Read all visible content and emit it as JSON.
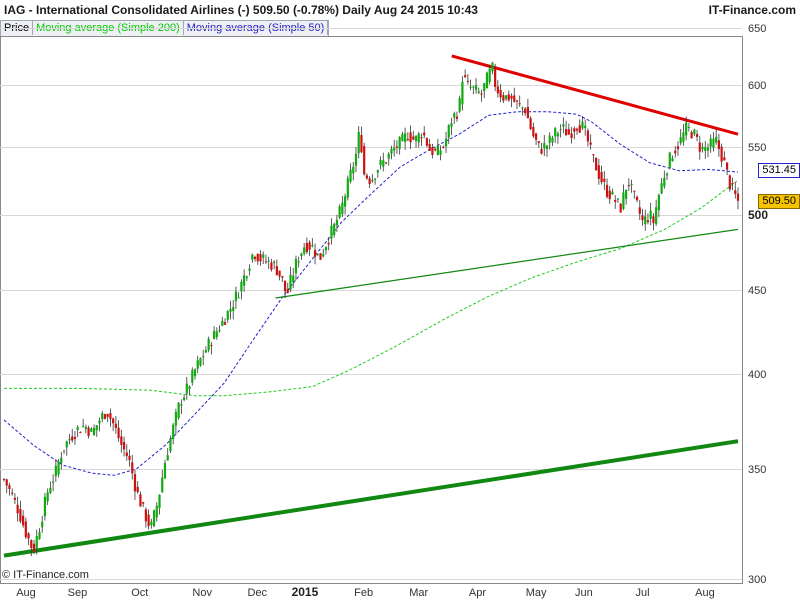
{
  "title": {
    "left": "IAG - International Consolidated Airlines  (-)    509.50 (-0.78%)    Daily  Aug 24 2015 10:43",
    "right": "IT-Finance.com"
  },
  "legend": {
    "items": [
      {
        "label": "Price",
        "color": "#000000"
      },
      {
        "label": "Moving average (Simple 200)",
        "color": "#00cc00"
      },
      {
        "label": "Moving average (Simple 50)",
        "color": "#2222cc"
      }
    ]
  },
  "credit": "© IT-Finance.com",
  "badges": [
    {
      "label": "531.45",
      "value": 531.45,
      "bg": "#ffffff",
      "border": "#2222cc"
    },
    {
      "label": "509.50",
      "value": 509.5,
      "bg": "#f5c400",
      "border": "#886600"
    }
  ],
  "chart_data": {
    "type": "candlestick",
    "scale": "log",
    "ylim": [
      300,
      650
    ],
    "y_ticks": [
      {
        "label": "650",
        "value": 650
      },
      {
        "label": "600",
        "value": 600
      },
      {
        "label": "550",
        "value": 550
      },
      {
        "label": "500",
        "value": 500,
        "bold": true
      },
      {
        "label": "450",
        "value": 450
      },
      {
        "label": "400",
        "value": 400
      },
      {
        "label": "350",
        "value": 350
      },
      {
        "label": "300",
        "value": 300
      }
    ],
    "x_ticks": [
      {
        "label": "Aug",
        "t": 0.03
      },
      {
        "label": "Sep",
        "t": 0.1
      },
      {
        "label": "Oct",
        "t": 0.185
      },
      {
        "label": "Nov",
        "t": 0.27
      },
      {
        "label": "Dec",
        "t": 0.345
      },
      {
        "label": "2015",
        "t": 0.41,
        "bold": true
      },
      {
        "label": "Feb",
        "t": 0.49
      },
      {
        "label": "Mar",
        "t": 0.565
      },
      {
        "label": "Apr",
        "t": 0.645
      },
      {
        "label": "May",
        "t": 0.725
      },
      {
        "label": "Jun",
        "t": 0.79
      },
      {
        "label": "Jul",
        "t": 0.87
      },
      {
        "label": "Aug",
        "t": 0.955
      }
    ],
    "price_path": [
      [
        0.0,
        345
      ],
      [
        0.01,
        338
      ],
      [
        0.02,
        330
      ],
      [
        0.03,
        320
      ],
      [
        0.04,
        312
      ],
      [
        0.05,
        325
      ],
      [
        0.06,
        340
      ],
      [
        0.07,
        348
      ],
      [
        0.08,
        360
      ],
      [
        0.09,
        366
      ],
      [
        0.1,
        370
      ],
      [
        0.11,
        372
      ],
      [
        0.12,
        368
      ],
      [
        0.13,
        375
      ],
      [
        0.14,
        380
      ],
      [
        0.15,
        372
      ],
      [
        0.16,
        362
      ],
      [
        0.17,
        355
      ],
      [
        0.18,
        340
      ],
      [
        0.19,
        330
      ],
      [
        0.2,
        322
      ],
      [
        0.21,
        335
      ],
      [
        0.22,
        355
      ],
      [
        0.23,
        370
      ],
      [
        0.24,
        385
      ],
      [
        0.25,
        392
      ],
      [
        0.26,
        402
      ],
      [
        0.27,
        410
      ],
      [
        0.28,
        418
      ],
      [
        0.29,
        425
      ],
      [
        0.3,
        432
      ],
      [
        0.31,
        440
      ],
      [
        0.32,
        450
      ],
      [
        0.33,
        462
      ],
      [
        0.34,
        475
      ],
      [
        0.35,
        470
      ],
      [
        0.36,
        468
      ],
      [
        0.37,
        465
      ],
      [
        0.38,
        455
      ],
      [
        0.385,
        446
      ],
      [
        0.39,
        455
      ],
      [
        0.4,
        470
      ],
      [
        0.41,
        480
      ],
      [
        0.42,
        478
      ],
      [
        0.43,
        470
      ],
      [
        0.44,
        482
      ],
      [
        0.45,
        492
      ],
      [
        0.46,
        505
      ],
      [
        0.47,
        525
      ],
      [
        0.48,
        545
      ],
      [
        0.485,
        565
      ],
      [
        0.49,
        530
      ],
      [
        0.5,
        525
      ],
      [
        0.51,
        535
      ],
      [
        0.52,
        540
      ],
      [
        0.53,
        548
      ],
      [
        0.54,
        553
      ],
      [
        0.55,
        560
      ],
      [
        0.56,
        555
      ],
      [
        0.57,
        562
      ],
      [
        0.58,
        548
      ],
      [
        0.59,
        545
      ],
      [
        0.6,
        552
      ],
      [
        0.61,
        572
      ],
      [
        0.62,
        580
      ],
      [
        0.625,
        610
      ],
      [
        0.63,
        600
      ],
      [
        0.64,
        596
      ],
      [
        0.65,
        592
      ],
      [
        0.66,
        608
      ],
      [
        0.665,
        615
      ],
      [
        0.67,
        598
      ],
      [
        0.68,
        590
      ],
      [
        0.69,
        590
      ],
      [
        0.7,
        583
      ],
      [
        0.71,
        580
      ],
      [
        0.72,
        560
      ],
      [
        0.73,
        548
      ],
      [
        0.74,
        552
      ],
      [
        0.75,
        560
      ],
      [
        0.76,
        565
      ],
      [
        0.77,
        560
      ],
      [
        0.78,
        568
      ],
      [
        0.79,
        565
      ],
      [
        0.8,
        545
      ],
      [
        0.81,
        530
      ],
      [
        0.82,
        518
      ],
      [
        0.83,
        512
      ],
      [
        0.84,
        505
      ],
      [
        0.85,
        525
      ],
      [
        0.86,
        510
      ],
      [
        0.87,
        495
      ],
      [
        0.88,
        500
      ],
      [
        0.885,
        495
      ],
      [
        0.89,
        510
      ],
      [
        0.9,
        530
      ],
      [
        0.91,
        545
      ],
      [
        0.92,
        553
      ],
      [
        0.93,
        565
      ],
      [
        0.94,
        560
      ],
      [
        0.95,
        548
      ],
      [
        0.96,
        550
      ],
      [
        0.97,
        555
      ],
      [
        0.98,
        540
      ],
      [
        0.99,
        520
      ],
      [
        1.0,
        509.5
      ]
    ],
    "ma200": [
      [
        0.0,
        392
      ],
      [
        0.1,
        392
      ],
      [
        0.2,
        391
      ],
      [
        0.26,
        388
      ],
      [
        0.3,
        388
      ],
      [
        0.36,
        390
      ],
      [
        0.42,
        393
      ],
      [
        0.47,
        402
      ],
      [
        0.53,
        415
      ],
      [
        0.6,
        432
      ],
      [
        0.66,
        446
      ],
      [
        0.72,
        458
      ],
      [
        0.78,
        468
      ],
      [
        0.84,
        477
      ],
      [
        0.9,
        490
      ],
      [
        0.95,
        505
      ],
      [
        1.0,
        525
      ]
    ],
    "ma50": [
      [
        0.0,
        375
      ],
      [
        0.04,
        362
      ],
      [
        0.08,
        352
      ],
      [
        0.12,
        348
      ],
      [
        0.15,
        347
      ],
      [
        0.18,
        350
      ],
      [
        0.22,
        362
      ],
      [
        0.26,
        378
      ],
      [
        0.3,
        395
      ],
      [
        0.34,
        420
      ],
      [
        0.38,
        446
      ],
      [
        0.42,
        470
      ],
      [
        0.46,
        495
      ],
      [
        0.5,
        515
      ],
      [
        0.54,
        535
      ],
      [
        0.58,
        548
      ],
      [
        0.62,
        560
      ],
      [
        0.66,
        575
      ],
      [
        0.7,
        578
      ],
      [
        0.74,
        578
      ],
      [
        0.78,
        576
      ],
      [
        0.8,
        570
      ],
      [
        0.84,
        552
      ],
      [
        0.88,
        538
      ],
      [
        0.92,
        532
      ],
      [
        0.96,
        533
      ],
      [
        1.0,
        531
      ]
    ],
    "trendlines": [
      {
        "color": "#e00000",
        "width": 3,
        "from": [
          0.61,
          625
        ],
        "to": [
          1.0,
          560
        ]
      },
      {
        "color": "#118811",
        "width": 1.2,
        "from": [
          0.37,
          445
        ],
        "to": [
          1.0,
          490
        ]
      },
      {
        "color": "#118811",
        "width": 4,
        "from": [
          0.0,
          310
        ],
        "to": [
          1.0,
          364
        ]
      }
    ],
    "grid_y_values": [
      650,
      600,
      550,
      500,
      450,
      400,
      350,
      300
    ]
  }
}
